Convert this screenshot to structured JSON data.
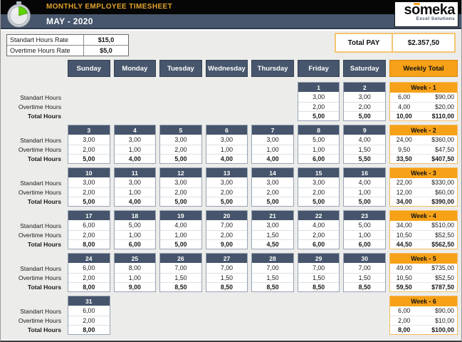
{
  "header": {
    "app_title": "MONTHLY EMPLOYEE TIMESHEET",
    "period": "MAY - 2020",
    "logo_brand": "someka",
    "logo_tagline": "Excel Solutions"
  },
  "rates": {
    "standard_label": "Standart Hours Rate",
    "standard_value": "$15,0",
    "overtime_label": "Overtime Hours Rate",
    "overtime_value": "$5,0"
  },
  "total_pay": {
    "label": "Total PAY",
    "value": "$2.357,50"
  },
  "colors": {
    "slate": "#47566C",
    "orange": "#F6A118",
    "title_gold": "#E2A42C",
    "sheet_bg": "#ECECEA"
  },
  "calendar": {
    "day_headers": [
      "Sunday",
      "Monday",
      "Tuesday",
      "Wednesday",
      "Thursday",
      "Friday",
      "Saturday"
    ],
    "weekly_total_header": "Weekly Total",
    "row_labels": [
      "Standart Hours",
      "Overtime Hours",
      "Total Hours"
    ],
    "weeks": [
      {
        "label": "Week - 1",
        "days": [
          null,
          null,
          null,
          null,
          null,
          {
            "date": "1",
            "standard": "3,00",
            "overtime": "2,00",
            "total": "5,00"
          },
          {
            "date": "2",
            "standard": "3,00",
            "overtime": "2,00",
            "total": "5,00"
          }
        ],
        "summary": {
          "standard_hours": "6,00",
          "standard_pay": "$90,00",
          "overtime_hours": "4,00",
          "overtime_pay": "$20,00",
          "total_hours": "10,00",
          "total_pay": "$110,00"
        }
      },
      {
        "label": "Week - 2",
        "days": [
          {
            "date": "3",
            "standard": "3,00",
            "overtime": "2,00",
            "total": "5,00"
          },
          {
            "date": "4",
            "standard": "3,00",
            "overtime": "1,00",
            "total": "4,00"
          },
          {
            "date": "5",
            "standard": "3,00",
            "overtime": "2,00",
            "total": "5,00"
          },
          {
            "date": "6",
            "standard": "3,00",
            "overtime": "1,00",
            "total": "4,00"
          },
          {
            "date": "7",
            "standard": "3,00",
            "overtime": "1,00",
            "total": "4,00"
          },
          {
            "date": "8",
            "standard": "5,00",
            "overtime": "1,00",
            "total": "6,00"
          },
          {
            "date": "9",
            "standard": "4,00",
            "overtime": "1,50",
            "total": "5,50"
          }
        ],
        "summary": {
          "standard_hours": "24,00",
          "standard_pay": "$360,00",
          "overtime_hours": "9,50",
          "overtime_pay": "$47,50",
          "total_hours": "33,50",
          "total_pay": "$407,50"
        }
      },
      {
        "label": "Week - 3",
        "days": [
          {
            "date": "10",
            "standard": "3,00",
            "overtime": "2,00",
            "total": "5,00"
          },
          {
            "date": "11",
            "standard": "3,00",
            "overtime": "1,00",
            "total": "4,00"
          },
          {
            "date": "12",
            "standard": "3,00",
            "overtime": "2,00",
            "total": "5,00"
          },
          {
            "date": "13",
            "standard": "3,00",
            "overtime": "2,00",
            "total": "5,00"
          },
          {
            "date": "14",
            "standard": "3,00",
            "overtime": "2,00",
            "total": "5,00"
          },
          {
            "date": "15",
            "standard": "3,00",
            "overtime": "2,00",
            "total": "5,00"
          },
          {
            "date": "16",
            "standard": "4,00",
            "overtime": "1,00",
            "total": "5,00"
          }
        ],
        "summary": {
          "standard_hours": "22,00",
          "standard_pay": "$330,00",
          "overtime_hours": "12,00",
          "overtime_pay": "$60,00",
          "total_hours": "34,00",
          "total_pay": "$390,00"
        }
      },
      {
        "label": "Week - 4",
        "days": [
          {
            "date": "17",
            "standard": "6,00",
            "overtime": "2,00",
            "total": "8,00"
          },
          {
            "date": "18",
            "standard": "5,00",
            "overtime": "1,00",
            "total": "6,00"
          },
          {
            "date": "19",
            "standard": "4,00",
            "overtime": "1,00",
            "total": "5,00"
          },
          {
            "date": "20",
            "standard": "7,00",
            "overtime": "2,00",
            "total": "9,00"
          },
          {
            "date": "21",
            "standard": "3,00",
            "overtime": "1,50",
            "total": "4,50"
          },
          {
            "date": "22",
            "standard": "4,00",
            "overtime": "2,00",
            "total": "6,00"
          },
          {
            "date": "23",
            "standard": "5,00",
            "overtime": "1,00",
            "total": "6,00"
          }
        ],
        "summary": {
          "standard_hours": "34,00",
          "standard_pay": "$510,00",
          "overtime_hours": "10,50",
          "overtime_pay": "$52,50",
          "total_hours": "44,50",
          "total_pay": "$562,50"
        }
      },
      {
        "label": "Week - 5",
        "days": [
          {
            "date": "24",
            "standard": "6,00",
            "overtime": "2,00",
            "total": "8,00"
          },
          {
            "date": "25",
            "standard": "8,00",
            "overtime": "1,00",
            "total": "9,00"
          },
          {
            "date": "26",
            "standard": "7,00",
            "overtime": "1,50",
            "total": "8,50"
          },
          {
            "date": "27",
            "standard": "7,00",
            "overtime": "1,50",
            "total": "8,50"
          },
          {
            "date": "28",
            "standard": "7,00",
            "overtime": "1,50",
            "total": "8,50"
          },
          {
            "date": "29",
            "standard": "7,00",
            "overtime": "1,50",
            "total": "8,50"
          },
          {
            "date": "30",
            "standard": "7,00",
            "overtime": "1,50",
            "total": "8,50"
          }
        ],
        "summary": {
          "standard_hours": "49,00",
          "standard_pay": "$735,00",
          "overtime_hours": "10,50",
          "overtime_pay": "$52,50",
          "total_hours": "59,50",
          "total_pay": "$787,50"
        }
      },
      {
        "label": "Week - 6",
        "days": [
          {
            "date": "31",
            "standard": "6,00",
            "overtime": "2,00",
            "total": "8,00"
          },
          null,
          null,
          null,
          null,
          null,
          null
        ],
        "summary": {
          "standard_hours": "6,00",
          "standard_pay": "$90,00",
          "overtime_hours": "2,00",
          "overtime_pay": "$10,00",
          "total_hours": "8,00",
          "total_pay": "$100,00"
        }
      }
    ]
  }
}
